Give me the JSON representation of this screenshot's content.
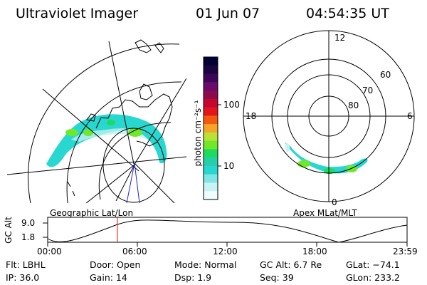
{
  "header": {
    "instrument": "Ultraviolet Imager",
    "date": "01 Jun 07",
    "time": "04:54:35 UT"
  },
  "colorbar": {
    "unit_label": "photon cm⁻²s⁻¹",
    "ticks": [
      "100",
      "10"
    ],
    "colors": [
      "#000033",
      "#1a0540",
      "#3a0658",
      "#6a0a6a",
      "#8c0b4f",
      "#c3072e",
      "#e1151b",
      "#f25a11",
      "#f7a52a",
      "#b9e034",
      "#6fe82a",
      "#1edb5f",
      "#25cfa9",
      "#28d7cf",
      "#7fe6e6",
      "#c9f2f2",
      "#eefcfc"
    ]
  },
  "panels": {
    "left_label": "Geographic Lat/Lon",
    "right_label": "Apex  MLat/MLT",
    "polar": {
      "mlt_labels": [
        "12",
        "18",
        "6",
        "0"
      ],
      "lat_labels": [
        "60",
        "70",
        "80"
      ]
    }
  },
  "altitude_plot": {
    "ylabel": "GC Alt",
    "y_ticks": [
      "9.0",
      "1.8"
    ],
    "x_ticks": [
      "00:00",
      "06:00",
      "12:00",
      "18:00",
      "23:59"
    ],
    "current_marker_color": "#ff0000"
  },
  "info": {
    "flt": "Flt: LBHL",
    "ip": "IP: 36.0",
    "door": "Door: Open",
    "gain": "Gain: 14",
    "mode": "Mode: Normal",
    "dsp": "Dsp:     1.9",
    "gcalt": "GC Alt: 6.7 Re",
    "seq": "Seq: 39",
    "glat": "GLat: −74.1",
    "glon": "GLon: 233.2"
  }
}
